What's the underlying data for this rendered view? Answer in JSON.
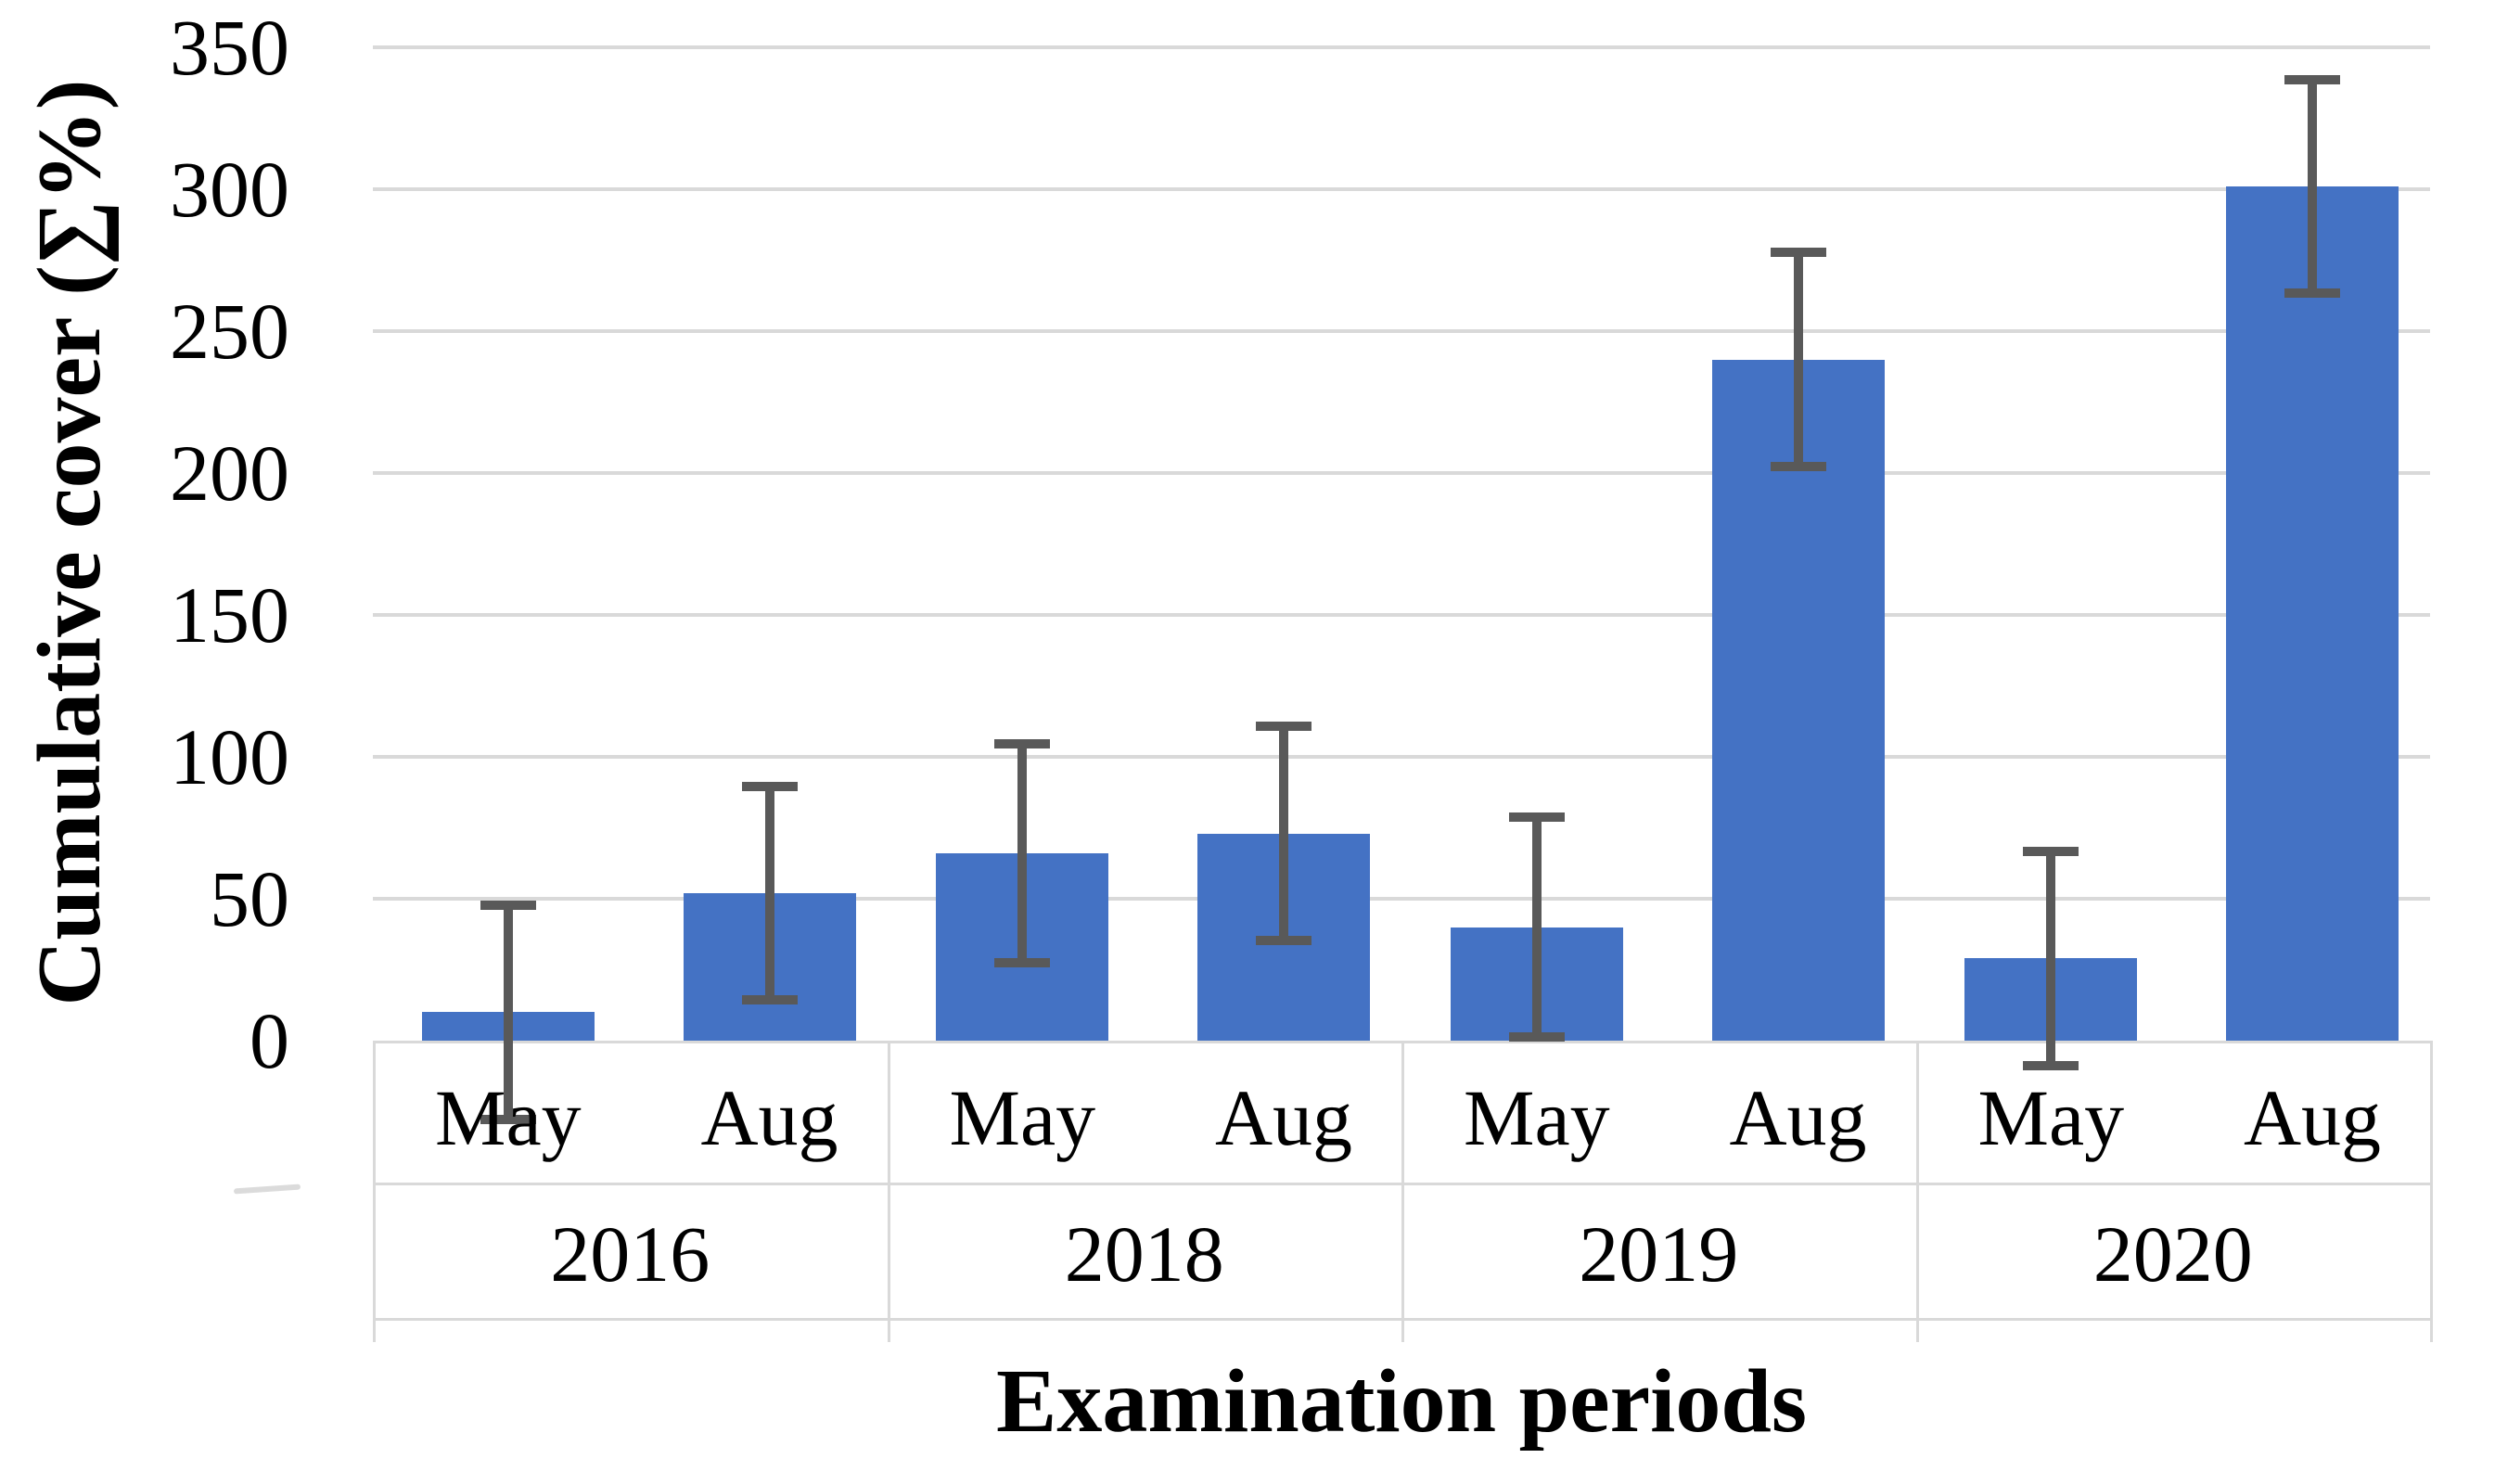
{
  "chart_data": {
    "type": "bar",
    "title": "",
    "xlabel": "Examination periods",
    "ylabel": "Cumulative cover (∑%)",
    "ylim": [
      0,
      350
    ],
    "ytick_step": 50,
    "yticks": [
      350,
      300,
      250,
      200,
      150,
      100,
      50,
      0
    ],
    "grid": true,
    "legend": "none",
    "categories": [
      "2016 May",
      "2016 Aug",
      "2018 May",
      "2018 Aug",
      "2019 May",
      "2019 Aug",
      "2020 May",
      "2020 Aug"
    ],
    "values": [
      10,
      52,
      66,
      73,
      40,
      240,
      29,
      301
    ],
    "error_bars": [
      38,
      38,
      39,
      38,
      39,
      38,
      38,
      38
    ],
    "groups": [
      {
        "year": "2016",
        "bars": [
          {
            "month": "May",
            "value": 10,
            "error": 38
          },
          {
            "month": "Aug",
            "value": 52,
            "error": 38
          }
        ]
      },
      {
        "year": "2018",
        "bars": [
          {
            "month": "May",
            "value": 66,
            "error": 39
          },
          {
            "month": "Aug",
            "value": 73,
            "error": 38
          }
        ]
      },
      {
        "year": "2019",
        "bars": [
          {
            "month": "May",
            "value": 40,
            "error": 39
          },
          {
            "month": "Aug",
            "value": 240,
            "error": 38
          }
        ]
      },
      {
        "year": "2020",
        "bars": [
          {
            "month": "May",
            "value": 29,
            "error": 38
          },
          {
            "month": "Aug",
            "value": 301,
            "error": 38
          }
        ]
      }
    ]
  },
  "colors": {
    "bar": "#4472C4",
    "error_bar": "#595959",
    "gridline": "#D9D9D9",
    "table_border": "#D9D9D9",
    "text": "#000000",
    "background": "#FFFFFF"
  }
}
